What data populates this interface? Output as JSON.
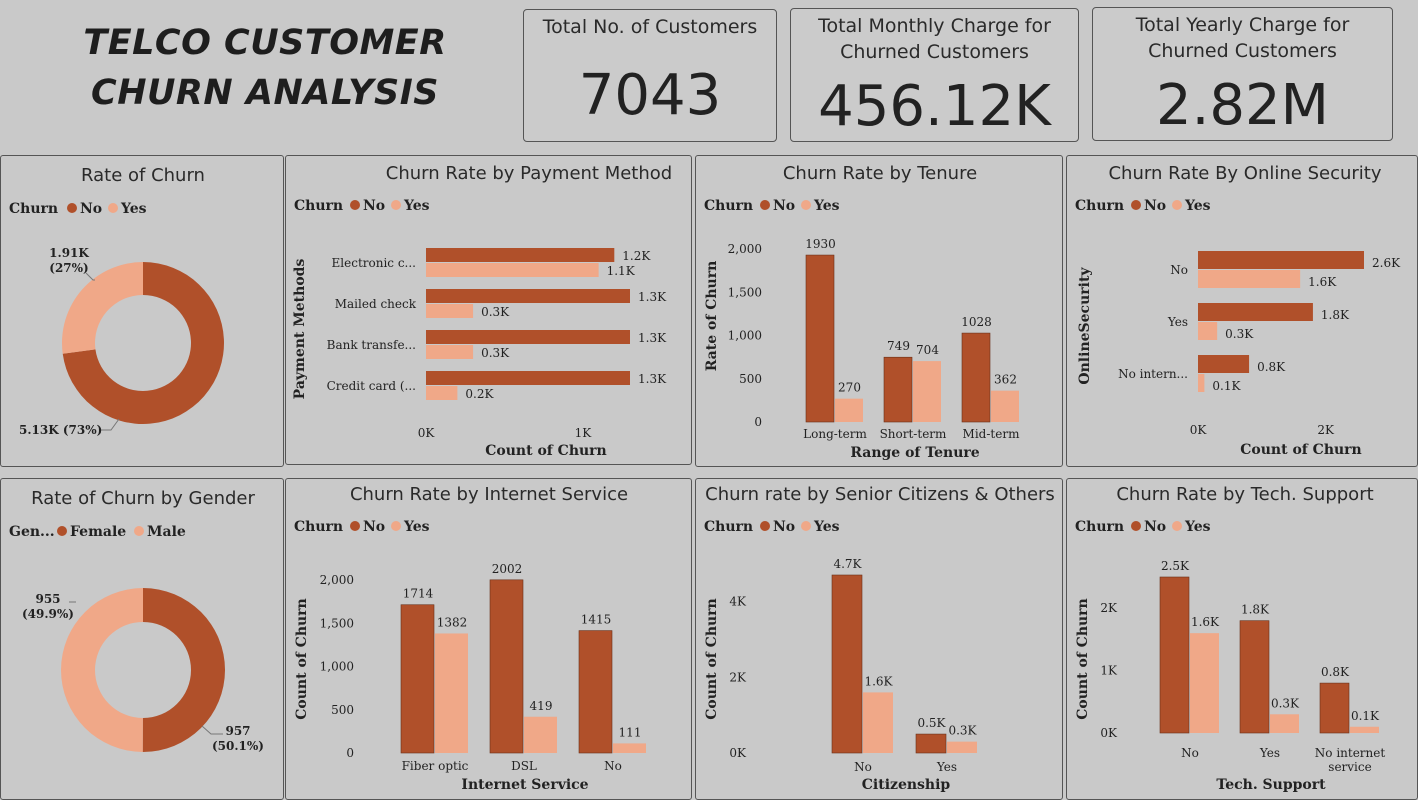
{
  "dashboard": {
    "title_line1": "TELCO CUSTOMER",
    "title_line2": "CHURN ANALYSIS",
    "colors": {
      "no": "#b0502a",
      "yes": "#f0a888",
      "background": "#c9c9c9"
    }
  },
  "kpis": [
    {
      "label_lines": [
        "Total No. of Customers"
      ],
      "value": "7043"
    },
    {
      "label_lines": [
        "Total Monthly Charge for",
        "Churned Customers"
      ],
      "value": "456.12K"
    },
    {
      "label_lines": [
        "Total Yearly Charge for",
        "Churned Customers"
      ],
      "value": "2.82M"
    }
  ],
  "chart_data": [
    {
      "type": "pie",
      "title": "Rate of Churn",
      "legend": {
        "title": "Churn",
        "items": [
          "No",
          "Yes"
        ]
      },
      "slices": [
        {
          "label": "No",
          "value": 5130,
          "display": "5.13K (73%)"
        },
        {
          "label": "Yes",
          "value": 1910,
          "display_lines": [
            "1.91K",
            "(27%)"
          ]
        }
      ]
    },
    {
      "type": "bar",
      "orientation": "horizontal",
      "title": "Churn Rate by Payment Method",
      "legend": {
        "title": "Churn",
        "items": [
          "No",
          "Yes"
        ]
      },
      "categories": [
        "Electronic c...",
        "Mailed check",
        "Bank transfe...",
        "Credit card (..."
      ],
      "series": [
        {
          "name": "No",
          "values": [
            1200,
            1300,
            1300,
            1300
          ],
          "labels": [
            "1.2K",
            "1.3K",
            "1.3K",
            "1.3K"
          ]
        },
        {
          "name": "Yes",
          "values": [
            1100,
            300,
            300,
            200
          ],
          "labels": [
            "1.1K",
            "0.3K",
            "0.3K",
            "0.2K"
          ]
        }
      ],
      "xlabel": "Count of Churn",
      "ylabel": "Payment Methods",
      "xlim": [
        0,
        1300
      ],
      "ticks": [
        {
          "v": 0,
          "t": "0K"
        },
        {
          "v": 1000,
          "t": "1K"
        }
      ]
    },
    {
      "type": "bar",
      "orientation": "vertical",
      "title": "Churn Rate by Tenure",
      "legend": {
        "title": "Churn",
        "items": [
          "No",
          "Yes"
        ]
      },
      "categories": [
        "Long-term",
        "Short-term",
        "Mid-term"
      ],
      "series": [
        {
          "name": "No",
          "values": [
            1930,
            749,
            1028
          ],
          "labels": [
            "1930",
            "749",
            "1028"
          ]
        },
        {
          "name": "Yes",
          "values": [
            270,
            704,
            362
          ],
          "labels": [
            "270",
            "704",
            "362"
          ]
        }
      ],
      "xlabel": "Range of Tenure",
      "ylabel": "Rate of Churn",
      "ylim": [
        0,
        2000
      ],
      "ticks": [
        {
          "v": 0,
          "t": "0"
        },
        {
          "v": 500,
          "t": "500"
        },
        {
          "v": 1000,
          "t": "1,000"
        },
        {
          "v": 1500,
          "t": "1,500"
        },
        {
          "v": 2000,
          "t": "2,000"
        }
      ]
    },
    {
      "type": "bar",
      "orientation": "horizontal",
      "title": "Churn Rate By Online Security",
      "legend": {
        "title": "Churn",
        "items": [
          "No",
          "Yes"
        ]
      },
      "categories": [
        "No",
        "Yes",
        "No intern..."
      ],
      "series": [
        {
          "name": "No",
          "values": [
            2600,
            1800,
            800
          ],
          "labels": [
            "2.6K",
            "1.8K",
            "0.8K"
          ]
        },
        {
          "name": "Yes",
          "values": [
            1600,
            300,
            100
          ],
          "labels": [
            "1.6K",
            "0.3K",
            "0.1K"
          ]
        }
      ],
      "xlabel": "Count of Churn",
      "ylabel": "OnlineSecurity",
      "xlim": [
        0,
        2600
      ],
      "ticks": [
        {
          "v": 0,
          "t": "0K"
        },
        {
          "v": 2000,
          "t": "2K"
        }
      ]
    },
    {
      "type": "pie",
      "title": "Rate of Churn by Gender",
      "legend": {
        "title": "Gen...",
        "items": [
          "Female",
          "Male"
        ]
      },
      "slices": [
        {
          "label": "Female",
          "value": 957,
          "display_lines": [
            "957",
            "(50.1%)"
          ]
        },
        {
          "label": "Male",
          "value": 955,
          "display_lines": [
            "955",
            "(49.9%)"
          ]
        }
      ]
    },
    {
      "type": "bar",
      "orientation": "vertical",
      "title": "Churn Rate by Internet Service",
      "legend": {
        "title": "Churn",
        "items": [
          "No",
          "Yes"
        ]
      },
      "categories": [
        "Fiber optic",
        "DSL",
        "No"
      ],
      "series": [
        {
          "name": "No",
          "values": [
            1714,
            2002,
            1415
          ],
          "labels": [
            "1714",
            "2002",
            "1415"
          ]
        },
        {
          "name": "Yes",
          "values": [
            1382,
            419,
            111
          ],
          "labels": [
            "1382",
            "419",
            "111"
          ]
        }
      ],
      "xlabel": "Internet Service",
      "ylabel": "Count of Churn",
      "ylim": [
        0,
        2000
      ],
      "ticks": [
        {
          "v": 0,
          "t": "0"
        },
        {
          "v": 500,
          "t": "500"
        },
        {
          "v": 1000,
          "t": "1,000"
        },
        {
          "v": 1500,
          "t": "1,500"
        },
        {
          "v": 2000,
          "t": "2,000"
        }
      ]
    },
    {
      "type": "bar",
      "orientation": "vertical",
      "title": "Churn rate by Senior Citizens & Others",
      "legend": {
        "title": "Churn",
        "items": [
          "No",
          "Yes"
        ]
      },
      "categories": [
        "No",
        "Yes"
      ],
      "series": [
        {
          "name": "No",
          "values": [
            4700,
            500
          ],
          "labels": [
            "4.7K",
            "0.5K"
          ]
        },
        {
          "name": "Yes",
          "values": [
            1600,
            300
          ],
          "labels": [
            "1.6K",
            "0.3K"
          ]
        }
      ],
      "xlabel": "Citizenship",
      "ylabel": "Count of Churn",
      "ylim": [
        0,
        4700
      ],
      "ticks": [
        {
          "v": 0,
          "t": "0K"
        },
        {
          "v": 2000,
          "t": "2K"
        },
        {
          "v": 4000,
          "t": "4K"
        }
      ]
    },
    {
      "type": "bar",
      "orientation": "vertical",
      "title": "Churn Rate by Tech. Support",
      "legend": {
        "title": "Churn",
        "items": [
          "No",
          "Yes"
        ]
      },
      "categories": [
        "No",
        "Yes",
        "No internet service"
      ],
      "series": [
        {
          "name": "No",
          "values": [
            2500,
            1800,
            800
          ],
          "labels": [
            "2.5K",
            "1.8K",
            "0.8K"
          ]
        },
        {
          "name": "Yes",
          "values": [
            1600,
            300,
            100
          ],
          "labels": [
            "1.6K",
            "0.3K",
            "0.1K"
          ]
        }
      ],
      "xlabel": "Tech. Support",
      "ylabel": "Count of Churn",
      "ylim": [
        0,
        2500
      ],
      "ticks": [
        {
          "v": 0,
          "t": "0K"
        },
        {
          "v": 1000,
          "t": "1K"
        },
        {
          "v": 2000,
          "t": "2K"
        }
      ]
    }
  ]
}
